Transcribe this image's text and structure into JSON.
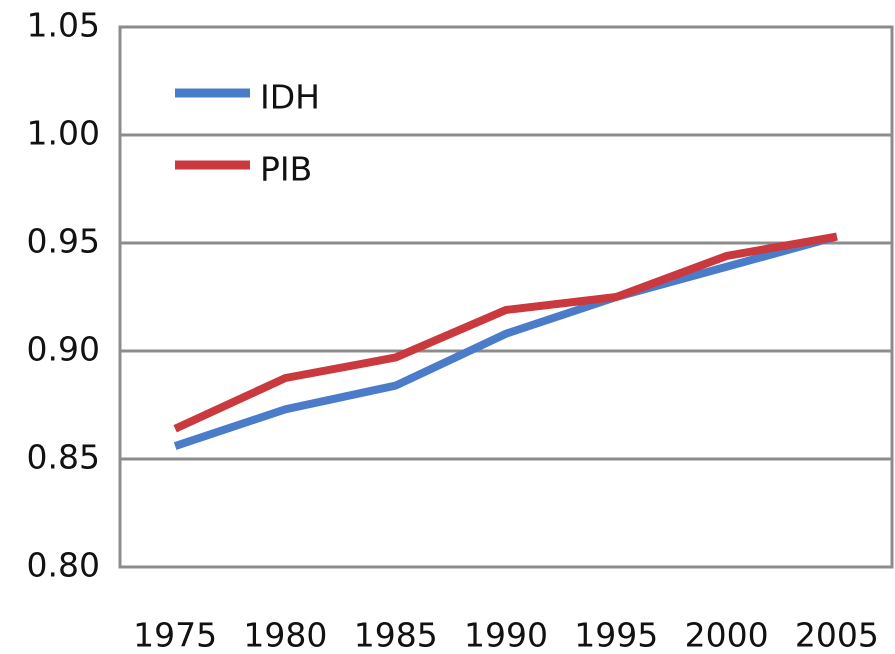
{
  "chart_data": {
    "type": "line",
    "categories": [
      "1975",
      "1980",
      "1985",
      "1990",
      "1995",
      "2000",
      "2005"
    ],
    "series": [
      {
        "name": "IDH",
        "color": "#4a7cc9",
        "values": [
          0.856,
          0.873,
          0.884,
          0.908,
          0.925,
          0.939,
          0.953
        ]
      },
      {
        "name": "PIB",
        "color": "#c9393d",
        "values": [
          0.864,
          0.8875,
          0.897,
          0.919,
          0.925,
          0.944,
          0.953
        ]
      }
    ],
    "ylim": [
      0.8,
      1.05
    ],
    "yticks": [
      {
        "value": 0.8,
        "label": "0.80"
      },
      0.85,
      {
        "value": 0.9,
        "label": "0.90"
      },
      0.95,
      {
        "value": 1,
        "label": "1.00"
      },
      1.05
    ],
    "grid": true,
    "legend": "upper-left"
  }
}
